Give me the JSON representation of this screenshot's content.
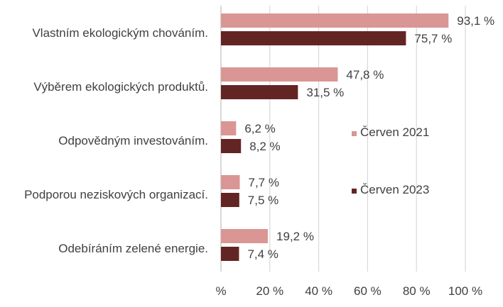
{
  "chart_data": {
    "type": "bar",
    "orientation": "horizontal",
    "categories": [
      "Vlastním ekologickým chováním.",
      "Výběrem ekologických produktů.",
      "Odpovědným investováním.",
      "Podporou neziskových organizací.",
      "Odebíráním zelené energie."
    ],
    "series": [
      {
        "name": "Červen 2021",
        "color": "#d99694",
        "values": [
          93.1,
          47.8,
          6.2,
          7.7,
          19.2
        ],
        "labels": [
          "93,1 %",
          "47,8 %",
          "6,2 %",
          "7,7 %",
          "19,2 %"
        ]
      },
      {
        "name": "Červen 2023",
        "color": "#632523",
        "values": [
          75.7,
          31.5,
          8.2,
          7.5,
          7.4
        ],
        "labels": [
          "75,7 %",
          "31,5 %",
          "8,2 %",
          "7,5 %",
          "7,4 %"
        ]
      }
    ],
    "xlim": [
      0,
      100
    ],
    "xticks": [
      0,
      20,
      40,
      60,
      80,
      100
    ],
    "xtick_labels": [
      "%",
      "20 %",
      "40 %",
      "60 %",
      "80 %",
      "100 %"
    ],
    "grid": "vertical",
    "gridline_color": "#d9d9d9",
    "legend_position": "right"
  }
}
